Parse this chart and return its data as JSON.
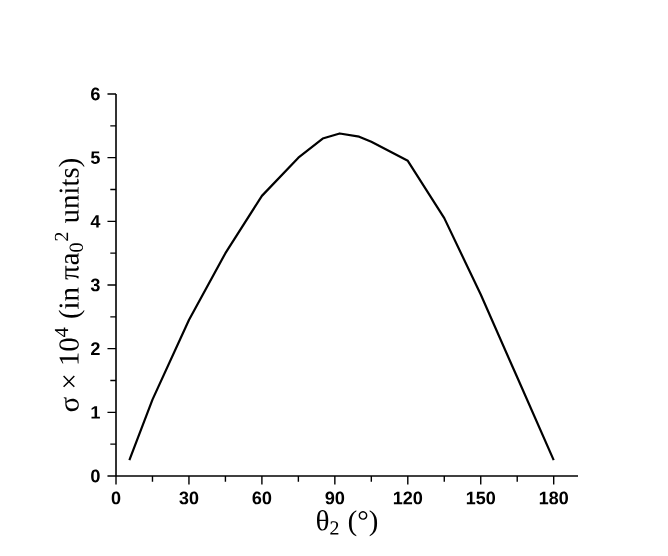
{
  "chart_data": {
    "type": "line",
    "xlabel": "θ$_{2}$ (°)",
    "ylabel": "σ × 10$^{4}$ (in πa$_{0}$$^{2}$ units)",
    "xlim": [
      0,
      190
    ],
    "ylim": [
      0,
      6
    ],
    "xticks": [
      0,
      30,
      60,
      90,
      120,
      150,
      180
    ],
    "yticks": [
      0,
      1,
      2,
      3,
      4,
      5,
      6
    ],
    "grid": false,
    "marker": "none",
    "line_style": "solid",
    "series": [
      {
        "color": "#000000",
        "x": [
          5.5,
          15,
          30,
          45,
          60,
          75,
          85,
          92,
          100,
          105,
          120,
          135,
          150,
          165,
          180
        ],
        "values": [
          0.25,
          1.2,
          2.45,
          3.5,
          4.4,
          5.0,
          5.3,
          5.38,
          5.33,
          5.25,
          4.95,
          4.05,
          2.85,
          1.55,
          0.25
        ]
      }
    ]
  }
}
